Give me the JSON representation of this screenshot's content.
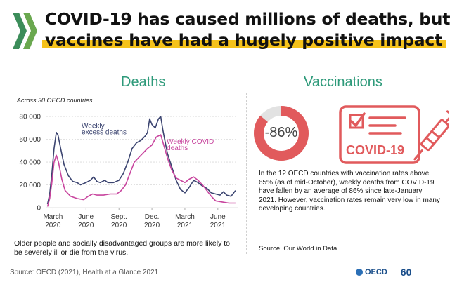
{
  "header": {
    "title_line1": "COVID-19 has caused millions of deaths, but",
    "title_line2": "vaccines have had a hugely positive impact"
  },
  "sections": {
    "deaths": "Deaths",
    "vaccinations": "Vaccinations"
  },
  "deaths_panel": {
    "subtitle": "Across 30 OECD countries",
    "note": "Older people and socially disadvantaged groups are more likely to be severely ill or die from the virus."
  },
  "colors": {
    "excess": "#3b4470",
    "covid": "#c8459e",
    "accent_green": "#2e9a7a",
    "highlight": "#f5c21b",
    "vaccine_red": "#e15a5c",
    "donut_gray": "#e2e2e2"
  },
  "chart_data": {
    "type": "line",
    "title": "",
    "xlabel": "",
    "ylabel": "",
    "ylim": [
      0,
      85000
    ],
    "yticks": [
      0,
      20000,
      40000,
      60000,
      80000
    ],
    "ytick_labels": [
      "0",
      "20 000",
      "40 000",
      "60 000",
      "80 000"
    ],
    "xticks": [
      {
        "m": 0,
        "label1": "March",
        "label2": "2020"
      },
      {
        "m": 3,
        "label1": "June",
        "label2": "2020"
      },
      {
        "m": 6,
        "label1": "Sept.",
        "label2": "2020"
      },
      {
        "m": 9,
        "label1": "Dec.",
        "label2": "2020"
      },
      {
        "m": 12,
        "label1": "March",
        "label2": "2021"
      },
      {
        "m": 15,
        "label1": "June",
        "label2": "2021"
      }
    ],
    "xlim": [
      -0.6,
      16.8
    ],
    "annotations": [
      {
        "text": "Weekly",
        "series": 0
      },
      {
        "text": "excess deaths",
        "series": 0
      },
      {
        "text": "Weekly COVID",
        "series": 1
      },
      {
        "text": "deaths",
        "series": 1
      }
    ],
    "series": [
      {
        "key": "excess",
        "values": [
          [
            -0.5,
            3000
          ],
          [
            -0.3,
            12000
          ],
          [
            -0.1,
            30000
          ],
          [
            0.1,
            52000
          ],
          [
            0.3,
            66000
          ],
          [
            0.45,
            64000
          ],
          [
            0.7,
            52000
          ],
          [
            1.0,
            38000
          ],
          [
            1.4,
            28000
          ],
          [
            1.8,
            23000
          ],
          [
            2.2,
            22000
          ],
          [
            2.5,
            20000
          ],
          [
            3.0,
            22000
          ],
          [
            3.4,
            24000
          ],
          [
            3.7,
            27000
          ],
          [
            4.0,
            23000
          ],
          [
            4.3,
            22000
          ],
          [
            4.7,
            24000
          ],
          [
            5.0,
            22000
          ],
          [
            5.5,
            22000
          ],
          [
            6.0,
            24000
          ],
          [
            6.4,
            30000
          ],
          [
            6.8,
            40000
          ],
          [
            7.2,
            52000
          ],
          [
            7.6,
            57000
          ],
          [
            8.0,
            59000
          ],
          [
            8.4,
            63000
          ],
          [
            8.6,
            66000
          ],
          [
            8.8,
            78000
          ],
          [
            9.0,
            73000
          ],
          [
            9.3,
            70000
          ],
          [
            9.6,
            78000
          ],
          [
            9.8,
            80000
          ],
          [
            10.0,
            68000
          ],
          [
            10.2,
            58000
          ],
          [
            10.4,
            48000
          ],
          [
            10.8,
            36000
          ],
          [
            11.2,
            24000
          ],
          [
            11.6,
            16000
          ],
          [
            12.0,
            13000
          ],
          [
            12.4,
            18000
          ],
          [
            12.8,
            24000
          ],
          [
            13.2,
            22000
          ],
          [
            13.6,
            19000
          ],
          [
            14.0,
            17000
          ],
          [
            14.4,
            13000
          ],
          [
            14.8,
            12000
          ],
          [
            15.2,
            11000
          ],
          [
            15.5,
            14000
          ],
          [
            15.8,
            11000
          ],
          [
            16.2,
            10000
          ],
          [
            16.6,
            15000
          ]
        ]
      },
      {
        "key": "covid",
        "values": [
          [
            -0.5,
            1000
          ],
          [
            -0.3,
            8000
          ],
          [
            -0.1,
            22000
          ],
          [
            0.1,
            40000
          ],
          [
            0.3,
            46000
          ],
          [
            0.5,
            40000
          ],
          [
            0.8,
            25000
          ],
          [
            1.1,
            15000
          ],
          [
            1.6,
            10000
          ],
          [
            2.2,
            8000
          ],
          [
            2.8,
            7000
          ],
          [
            3.2,
            10000
          ],
          [
            3.6,
            12000
          ],
          [
            4.0,
            11000
          ],
          [
            4.6,
            11000
          ],
          [
            5.2,
            12000
          ],
          [
            5.8,
            12000
          ],
          [
            6.2,
            15000
          ],
          [
            6.6,
            20000
          ],
          [
            7.0,
            30000
          ],
          [
            7.4,
            40000
          ],
          [
            7.8,
            44000
          ],
          [
            8.2,
            48000
          ],
          [
            8.6,
            52000
          ],
          [
            9.0,
            55000
          ],
          [
            9.4,
            62000
          ],
          [
            9.8,
            64000
          ],
          [
            10.1,
            54000
          ],
          [
            10.4,
            44000
          ],
          [
            10.8,
            33000
          ],
          [
            11.2,
            26000
          ],
          [
            11.6,
            24000
          ],
          [
            12.0,
            22000
          ],
          [
            12.4,
            25000
          ],
          [
            12.8,
            27000
          ],
          [
            13.2,
            24000
          ],
          [
            13.6,
            20000
          ],
          [
            14.0,
            15000
          ],
          [
            14.4,
            10000
          ],
          [
            14.8,
            6000
          ],
          [
            15.4,
            5000
          ],
          [
            16.0,
            4000
          ],
          [
            16.6,
            4000
          ]
        ]
      }
    ]
  },
  "donut": {
    "value_label": "-86%",
    "percent": 86
  },
  "vaccine_icon": {
    "label": "COVID-19"
  },
  "vaccination_panel": {
    "text": "In the 12 OECD countries with vaccination rates above 65% (as of mid-October), weekly deaths from COVID-19 have fallen by an average of 86% since late-January 2021. However, vaccination rates remain very low in many developing countries.",
    "source": "Source: Our World in Data."
  },
  "footer": {
    "source": "Source: OECD (2021), Health at a Glance 2021",
    "logo_text": "OECD",
    "anniversary": "60"
  }
}
